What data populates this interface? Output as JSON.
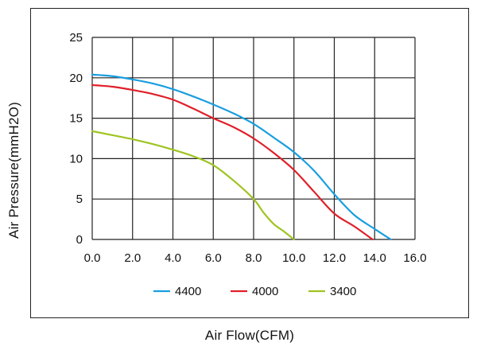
{
  "chart_data": {
    "type": "line",
    "xlabel": "Air Flow(CFM)",
    "ylabel": "Air Pressure(mmH2O)",
    "xlim": [
      0,
      16
    ],
    "ylim": [
      0,
      25
    ],
    "x_ticks": [
      "0.0",
      "2.0",
      "4.0",
      "6.0",
      "8.0",
      "10.0",
      "12.0",
      "14.0",
      "16.0"
    ],
    "y_ticks": [
      "0",
      "5",
      "10",
      "15",
      "20",
      "25"
    ],
    "grid": true,
    "legend_position": "bottom",
    "series": [
      {
        "name": "4400",
        "color": "#1a9ee0",
        "points": [
          [
            0,
            20.4
          ],
          [
            1,
            20.2
          ],
          [
            2,
            19.8
          ],
          [
            3,
            19.3
          ],
          [
            4,
            18.6
          ],
          [
            5,
            17.7
          ],
          [
            6,
            16.7
          ],
          [
            7,
            15.6
          ],
          [
            8,
            14.3
          ],
          [
            9,
            12.6
          ],
          [
            10,
            10.8
          ],
          [
            11,
            8.5
          ],
          [
            12,
            5.6
          ],
          [
            13,
            3.0
          ],
          [
            14,
            1.3
          ],
          [
            14.8,
            0
          ]
        ]
      },
      {
        "name": "4000",
        "color": "#e0202a",
        "points": [
          [
            0,
            19.1
          ],
          [
            1,
            18.9
          ],
          [
            2,
            18.5
          ],
          [
            3,
            18.0
          ],
          [
            4,
            17.3
          ],
          [
            5,
            16.2
          ],
          [
            6,
            15.0
          ],
          [
            7,
            13.9
          ],
          [
            8,
            12.5
          ],
          [
            9,
            10.7
          ],
          [
            10,
            8.6
          ],
          [
            11,
            5.9
          ],
          [
            12,
            3.2
          ],
          [
            13,
            1.6
          ],
          [
            13.9,
            0
          ]
        ]
      },
      {
        "name": "3400",
        "color": "#9fc420",
        "points": [
          [
            0,
            13.4
          ],
          [
            1,
            12.9
          ],
          [
            2,
            12.4
          ],
          [
            3,
            11.8
          ],
          [
            4,
            11.1
          ],
          [
            5,
            10.3
          ],
          [
            6,
            9.2
          ],
          [
            7,
            7.3
          ],
          [
            8,
            5.0
          ],
          [
            8.5,
            3.3
          ],
          [
            9,
            1.9
          ],
          [
            9.5,
            1.0
          ],
          [
            10.0,
            0
          ]
        ]
      }
    ]
  }
}
